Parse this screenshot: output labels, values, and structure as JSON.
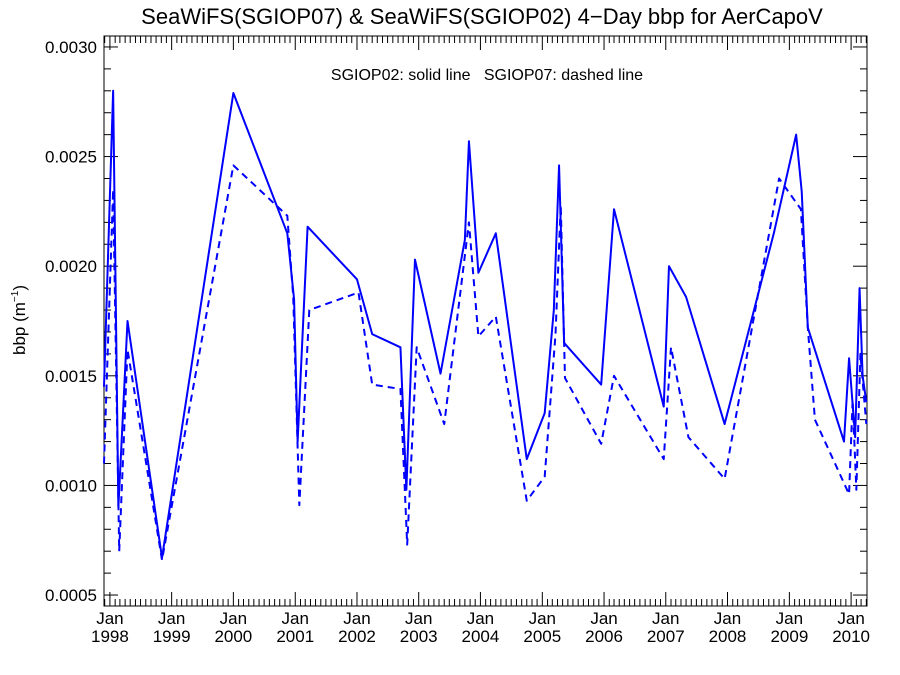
{
  "chart_data": {
    "type": "line",
    "title": "SeaWiFS(SGIOP07) & SeaWiFS(SGIOP02) 4−Day bbp for AerCapoV",
    "annotation": "SGIOP02: solid line   SGIOP07: dashed line",
    "ylabel": "bbp (m",
    "ylabel_sup": "−1",
    "ylabel_close": ")",
    "ylim": [
      0.00045,
      0.00305
    ],
    "xlim": [
      "1997-11-27",
      "2010-04-05"
    ],
    "y_ticks": [
      "0.0005",
      "0.0010",
      "0.0015",
      "0.0020",
      "0.0025",
      "0.0030"
    ],
    "x_ticks": [
      {
        "month": "Jan",
        "year": "1998",
        "date": "1998-01-01"
      },
      {
        "month": "Jan",
        "year": "1999",
        "date": "1999-01-01"
      },
      {
        "month": "Jan",
        "year": "2000",
        "date": "2000-01-01"
      },
      {
        "month": "Jan",
        "year": "2001",
        "date": "2001-01-01"
      },
      {
        "month": "Jan",
        "year": "2002",
        "date": "2002-01-01"
      },
      {
        "month": "Jan",
        "year": "2003",
        "date": "2003-01-01"
      },
      {
        "month": "Jan",
        "year": "2004",
        "date": "2004-01-01"
      },
      {
        "month": "Jan",
        "year": "2005",
        "date": "2005-01-01"
      },
      {
        "month": "Jan",
        "year": "2006",
        "date": "2006-01-01"
      },
      {
        "month": "Jan",
        "year": "2007",
        "date": "2007-01-01"
      },
      {
        "month": "Jan",
        "year": "2008",
        "date": "2008-01-01"
      },
      {
        "month": "Jan",
        "year": "2009",
        "date": "2009-01-01"
      },
      {
        "month": "Jan",
        "year": "2010",
        "date": "2010-01-01"
      }
    ],
    "grid": false,
    "line_color": "#0000ff",
    "series": [
      {
        "name": "SGIOP02",
        "style": "solid",
        "points": [
          [
            "1997-11-27",
            0.00145
          ],
          [
            "1998-01-20",
            0.0028
          ],
          [
            "1998-02-20",
            0.0009
          ],
          [
            "1998-04-15",
            0.00175
          ],
          [
            "1998-11-05",
            0.00067
          ],
          [
            "2000-01-01",
            0.00279
          ],
          [
            "2000-11-15",
            0.00215
          ],
          [
            "2000-12-25",
            0.00185
          ],
          [
            "2001-01-15",
            0.0012
          ],
          [
            "2001-03-15",
            0.00218
          ],
          [
            "2002-01-01",
            0.00194
          ],
          [
            "2002-04-01",
            0.00169
          ],
          [
            "2002-09-15",
            0.00163
          ],
          [
            "2002-10-20",
            0.00098
          ],
          [
            "2002-12-10",
            0.00203
          ],
          [
            "2003-05-10",
            0.00151
          ],
          [
            "2003-10-01",
            0.00212
          ],
          [
            "2003-10-25",
            0.00257
          ],
          [
            "2003-12-20",
            0.00197
          ],
          [
            "2004-04-01",
            0.00215
          ],
          [
            "2004-10-01",
            0.00112
          ],
          [
            "2005-01-15",
            0.00133
          ],
          [
            "2005-03-10",
            0.0018
          ],
          [
            "2005-04-10",
            0.00246
          ],
          [
            "2005-05-10",
            0.00165
          ],
          [
            "2005-12-15",
            0.00146
          ],
          [
            "2006-03-01",
            0.00226
          ],
          [
            "2006-12-20",
            0.00136
          ],
          [
            "2007-01-20",
            0.002
          ],
          [
            "2007-05-01",
            0.00186
          ],
          [
            "2007-12-15",
            0.00128
          ],
          [
            "2008-10-01",
            0.00215
          ],
          [
            "2009-02-10",
            0.0026
          ],
          [
            "2009-03-15",
            0.00234
          ],
          [
            "2009-04-20",
            0.00172
          ],
          [
            "2009-11-20",
            0.0012
          ],
          [
            "2009-12-20",
            0.00158
          ],
          [
            "2010-01-25",
            0.00122
          ],
          [
            "2010-02-20",
            0.0019
          ],
          [
            "2010-03-10",
            0.0015
          ],
          [
            "2010-04-01",
            0.00138
          ]
        ]
      },
      {
        "name": "SGIOP07",
        "style": "dashed",
        "points": [
          [
            "1997-11-27",
            0.0011
          ],
          [
            "1998-01-20",
            0.00235
          ],
          [
            "1998-02-25",
            0.0007
          ],
          [
            "1998-04-15",
            0.00162
          ],
          [
            "1998-11-05",
            0.00066
          ],
          [
            "2000-01-01",
            0.00246
          ],
          [
            "2000-11-15",
            0.00223
          ],
          [
            "2000-12-20",
            0.00186
          ],
          [
            "2001-01-25",
            0.00091
          ],
          [
            "2001-03-25",
            0.0018
          ],
          [
            "2002-01-10",
            0.00188
          ],
          [
            "2002-04-01",
            0.00146
          ],
          [
            "2002-09-15",
            0.00144
          ],
          [
            "2002-10-25",
            0.00073
          ],
          [
            "2002-12-20",
            0.00163
          ],
          [
            "2003-06-01",
            0.00128
          ],
          [
            "2003-10-25",
            0.0022
          ],
          [
            "2003-12-20",
            0.00168
          ],
          [
            "2004-04-01",
            0.00177
          ],
          [
            "2004-10-01",
            0.00093
          ],
          [
            "2005-01-15",
            0.00104
          ],
          [
            "2005-03-20",
            0.00169
          ],
          [
            "2005-04-20",
            0.00228
          ],
          [
            "2005-05-15",
            0.00149
          ],
          [
            "2005-12-15",
            0.00119
          ],
          [
            "2006-03-01",
            0.0015
          ],
          [
            "2006-12-20",
            0.00112
          ],
          [
            "2007-02-01",
            0.00163
          ],
          [
            "2007-05-15",
            0.00122
          ],
          [
            "2007-12-15",
            0.00103
          ],
          [
            "2008-11-01",
            0.0024
          ],
          [
            "2009-03-10",
            0.00226
          ],
          [
            "2009-04-20",
            0.00172
          ],
          [
            "2009-06-01",
            0.0013
          ],
          [
            "2009-12-20",
            0.00096
          ],
          [
            "2010-01-10",
            0.00139
          ],
          [
            "2010-02-01",
            0.00098
          ],
          [
            "2010-02-25",
            0.0016
          ],
          [
            "2010-04-01",
            0.00128
          ]
        ]
      }
    ]
  }
}
